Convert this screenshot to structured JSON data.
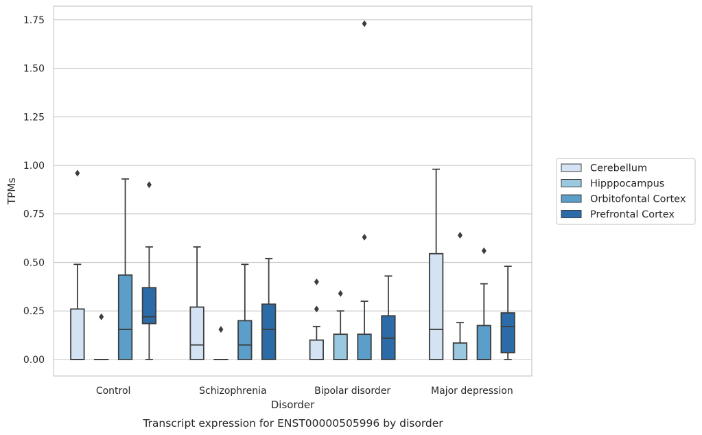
{
  "chart_data": {
    "type": "box",
    "caption": "Transcript expression for ENST00000505996 by disorder",
    "xlabel": "Disorder",
    "ylabel": "TPMs",
    "ylim": [
      -0.085,
      1.82
    ],
    "yticks": [
      "0.00",
      "0.25",
      "0.50",
      "0.75",
      "1.00",
      "1.25",
      "1.50",
      "1.75"
    ],
    "grid": "horizontal",
    "legend_position": "right",
    "categories": [
      "Control",
      "Schizophrenia",
      "Bipolar disorder",
      "Major depression"
    ],
    "series": [
      {
        "name": "Cerebellum",
        "color": "#d3e3f3",
        "boxes": [
          {
            "min": 0.0,
            "q1": 0.0,
            "median": 0.0,
            "q3": 0.26,
            "max": 0.49,
            "outliers": [
              0.96
            ]
          },
          {
            "min": 0.0,
            "q1": 0.0,
            "median": 0.075,
            "q3": 0.27,
            "max": 0.58,
            "outliers": []
          },
          {
            "min": 0.0,
            "q1": 0.0,
            "median": 0.0,
            "q3": 0.1,
            "max": 0.17,
            "outliers": [
              0.26,
              0.4
            ]
          },
          {
            "min": 0.0,
            "q1": 0.0,
            "median": 0.155,
            "q3": 0.545,
            "max": 0.98,
            "outliers": []
          }
        ]
      },
      {
        "name": "Hipppocampus",
        "color": "#9ac8e0",
        "boxes": [
          {
            "min": 0.0,
            "q1": 0.0,
            "median": 0.0,
            "q3": 0.0,
            "max": 0.0,
            "outliers": [
              0.22
            ]
          },
          {
            "min": 0.0,
            "q1": 0.0,
            "median": 0.0,
            "q3": 0.0,
            "max": 0.0,
            "outliers": [
              0.155
            ]
          },
          {
            "min": 0.0,
            "q1": 0.0,
            "median": 0.0,
            "q3": 0.13,
            "max": 0.25,
            "outliers": [
              0.34
            ]
          },
          {
            "min": 0.0,
            "q1": 0.0,
            "median": 0.0,
            "q3": 0.085,
            "max": 0.19,
            "outliers": [
              0.64
            ]
          }
        ]
      },
      {
        "name": "Orbitofontal Cortex",
        "color": "#5a9ec9",
        "boxes": [
          {
            "min": 0.0,
            "q1": 0.0,
            "median": 0.155,
            "q3": 0.435,
            "max": 0.93,
            "outliers": []
          },
          {
            "min": 0.0,
            "q1": 0.0,
            "median": 0.075,
            "q3": 0.2,
            "max": 0.49,
            "outliers": []
          },
          {
            "min": 0.0,
            "q1": 0.0,
            "median": 0.0,
            "q3": 0.13,
            "max": 0.3,
            "outliers": [
              0.63,
              1.73
            ]
          },
          {
            "min": 0.0,
            "q1": 0.0,
            "median": 0.0,
            "q3": 0.175,
            "max": 0.39,
            "outliers": [
              0.56
            ]
          }
        ]
      },
      {
        "name": "Prefrontal Cortex",
        "color": "#2b6ca8",
        "boxes": [
          {
            "min": 0.0,
            "q1": 0.185,
            "median": 0.22,
            "q3": 0.37,
            "max": 0.58,
            "outliers": [
              0.9
            ]
          },
          {
            "min": 0.0,
            "q1": 0.0,
            "median": 0.155,
            "q3": 0.285,
            "max": 0.52,
            "outliers": []
          },
          {
            "min": 0.0,
            "q1": 0.0,
            "median": 0.11,
            "q3": 0.225,
            "max": 0.43,
            "outliers": []
          },
          {
            "min": 0.0,
            "q1": 0.035,
            "median": 0.17,
            "q3": 0.24,
            "max": 0.48,
            "outliers": []
          }
        ]
      }
    ]
  }
}
